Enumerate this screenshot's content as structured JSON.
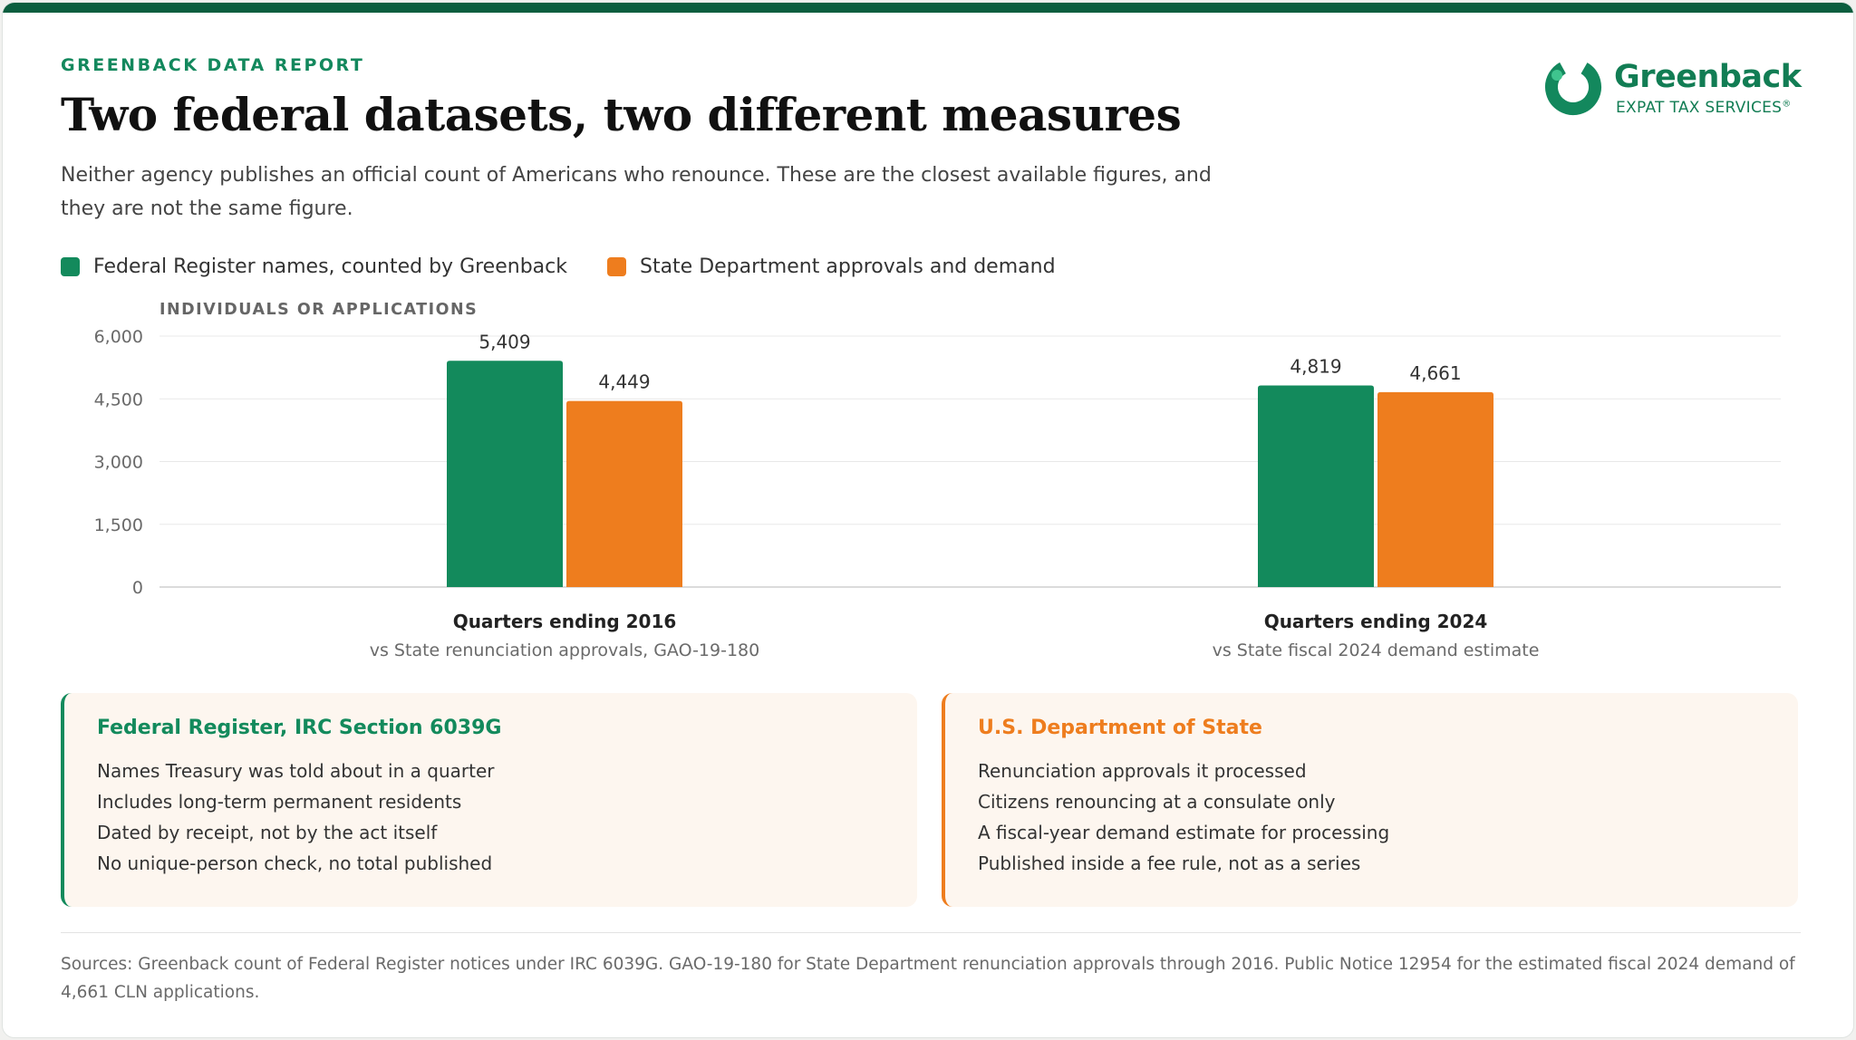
{
  "report_label": "GREENBACK DATA REPORT",
  "title": "Two federal datasets, two different measures",
  "subtitle": "Neither agency publishes an official count of Americans who renounce. These are the closest available figures, and they are not the same figure.",
  "logo": {
    "name": "Greenback",
    "tagline": "EXPAT TAX SERVICES",
    "mark": "®",
    "icon": "greenback-ring-icon"
  },
  "colors": {
    "green": "#138a5c",
    "orange": "#ee7d1e",
    "dark_green": "#0c5e3f"
  },
  "legend": [
    {
      "label": "Federal Register names, counted by Greenback",
      "color": "#138a5c"
    },
    {
      "label": "State Department approvals and demand",
      "color": "#ee7d1e"
    }
  ],
  "chart_data": {
    "type": "bar",
    "ylabel": "INDIVIDUALS OR APPLICATIONS",
    "ylim": [
      0,
      6000
    ],
    "yticks": [
      "6,000",
      "4,500",
      "3,000",
      "1,500",
      "0"
    ],
    "ytick_values": [
      6000,
      4500,
      3000,
      1500,
      0
    ],
    "grid": true,
    "legend_position": "top-left",
    "categories": [
      "Quarters ending 2016",
      "Quarters ending 2024"
    ],
    "category_notes": [
      "vs State renunciation approvals, GAO-19-180",
      "vs State fiscal 2024 demand estimate"
    ],
    "series": [
      {
        "name": "Federal Register names, counted by Greenback",
        "values": [
          5409,
          4819
        ],
        "labels": [
          "5,409",
          "4,819"
        ],
        "color": "#138a5c"
      },
      {
        "name": "State Department approvals and demand",
        "values": [
          4449,
          4661
        ],
        "labels": [
          "4,449",
          "4,661"
        ],
        "color": "#ee7d1e"
      }
    ]
  },
  "panels": [
    {
      "title": "Federal Register, IRC Section 6039G",
      "lines": [
        "Names Treasury was told about in a quarter",
        "Includes long-term permanent residents",
        "Dated by receipt, not by the act itself",
        "No unique-person check, no total published"
      ]
    },
    {
      "title": "U.S. Department of State",
      "lines": [
        "Renunciation approvals it processed",
        "Citizens renouncing at a consulate only",
        "A fiscal-year demand estimate for processing",
        "Published inside a fee rule, not as a series"
      ]
    }
  ],
  "sources": "Sources: Greenback count of Federal Register notices under IRC 6039G. GAO-19-180 for State Department renunciation approvals through 2016. Public Notice 12954 for the estimated fiscal 2024 demand of 4,661 CLN applications."
}
